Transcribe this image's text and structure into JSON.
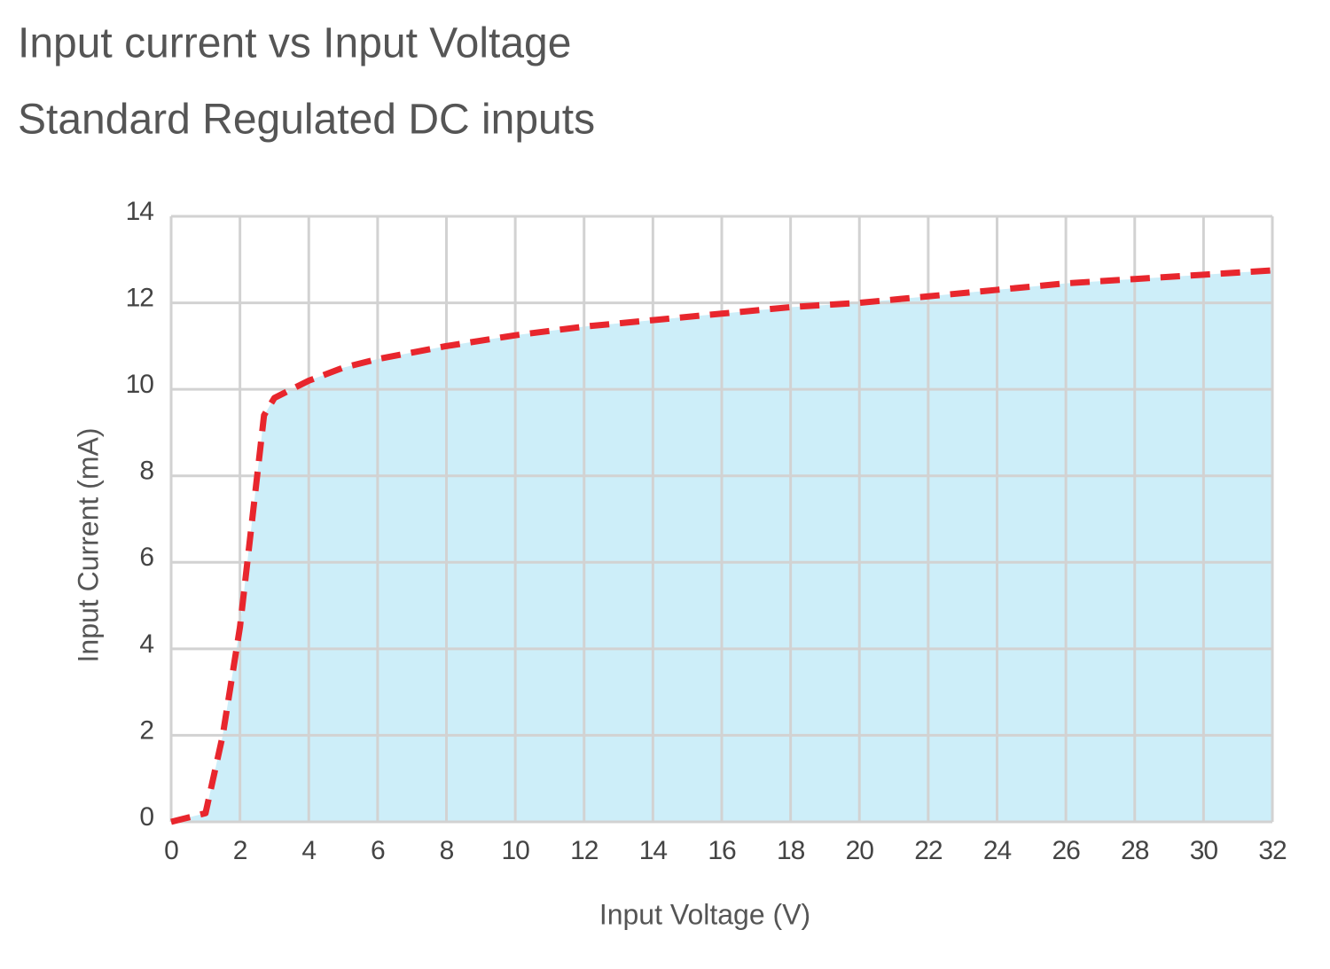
{
  "chart_data": {
    "type": "area",
    "title": "Input current vs Input Voltage",
    "subtitle": "Standard Regulated DC inputs",
    "x_label": "Input Voltage (V)",
    "y_label": "Input Current (mA)",
    "x": [
      0,
      1,
      1.5,
      2,
      2.5,
      2.7,
      3,
      4,
      5,
      6,
      8,
      10,
      12,
      14,
      16,
      18,
      20,
      22,
      24,
      26,
      28,
      30,
      32
    ],
    "values": [
      0,
      0.2,
      2,
      4.5,
      8,
      9.4,
      9.8,
      10.2,
      10.5,
      10.7,
      11.0,
      11.25,
      11.45,
      11.6,
      11.75,
      11.9,
      12.0,
      12.15,
      12.3,
      12.45,
      12.55,
      12.65,
      12.75
    ],
    "color": "#e8262d",
    "fill": "#cdeef9",
    "line_style": "dashed",
    "xlim": [
      0,
      32
    ],
    "ylim": [
      0,
      14
    ],
    "xticks": [
      0,
      2,
      4,
      6,
      8,
      10,
      12,
      14,
      16,
      18,
      20,
      22,
      24,
      26,
      28,
      30,
      32
    ],
    "yticks": [
      0,
      2,
      4,
      6,
      8,
      10,
      12,
      14
    ],
    "grid": true
  }
}
